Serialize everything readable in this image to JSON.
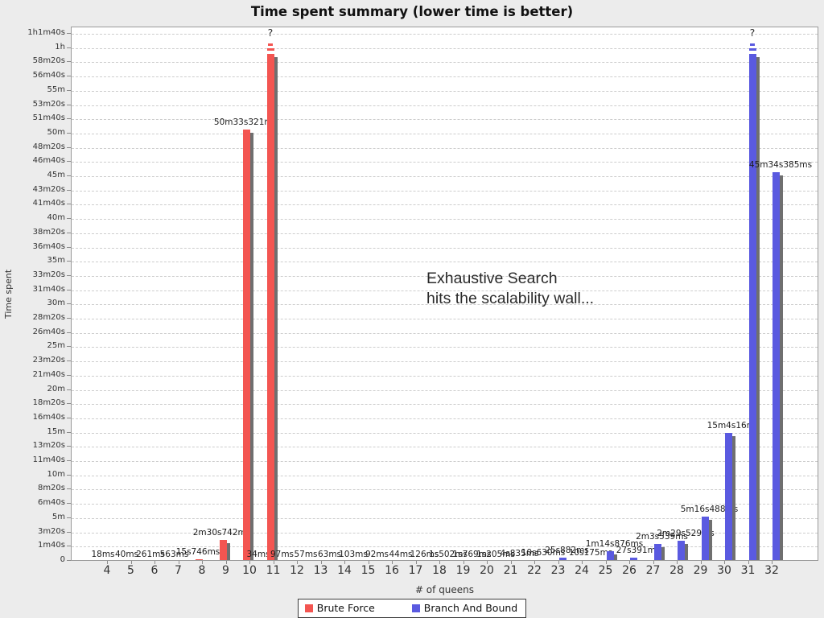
{
  "chart_data": {
    "type": "bar",
    "title": "Time spent summary (lower time is better)",
    "xlabel": "# of queens",
    "ylabel": "Time spent",
    "legend_position": "bottom",
    "grid": "horizontal-dashed",
    "plot_bg": "#ffffff",
    "page_bg": "#ececec",
    "shadow_color": "#6f6f6f",
    "failed_marker": "?",
    "categories": [
      4,
      5,
      6,
      7,
      8,
      9,
      10,
      11,
      12,
      13,
      14,
      15,
      16,
      17,
      18,
      19,
      20,
      21,
      22,
      23,
      24,
      25,
      26,
      27,
      28,
      29,
      30,
      31,
      32
    ],
    "y_axis": {
      "unit": "time",
      "tick_interval_seconds": 100,
      "max_seconds": 3700,
      "tick_labels_bottom_to_top": [
        "0",
        "1m40s",
        "3m20s",
        "5m",
        "6m40s",
        "8m20s",
        "10m",
        "11m40s",
        "13m20s",
        "15m",
        "16m40s",
        "18m20s",
        "20m",
        "21m40s",
        "23m20s",
        "25m",
        "26m40s",
        "28m20s",
        "30m",
        "31m40s",
        "33m20s",
        "35m",
        "36m40s",
        "38m20s",
        "40m",
        "41m40s",
        "43m20s",
        "45m",
        "46m40s",
        "48m20s",
        "50m",
        "51m40s",
        "53m20s",
        "55m",
        "56m40s",
        "58m20s",
        "1h",
        "1h1m40s"
      ]
    },
    "series": [
      {
        "name": "Brute Force",
        "color": "#f35551",
        "values": [
          {
            "queens": 4,
            "label": "18ms",
            "seconds": 0.018
          },
          {
            "queens": 5,
            "label": "40ms",
            "seconds": 0.04
          },
          {
            "queens": 6,
            "label": "261ms",
            "seconds": 0.261
          },
          {
            "queens": 7,
            "label": "563ms",
            "seconds": 0.563
          },
          {
            "queens": 8,
            "label": "15s746ms",
            "seconds": 15.746
          },
          {
            "queens": 9,
            "label": "2m30s742ms",
            "seconds": 150.742
          },
          {
            "queens": 10,
            "label": "50m33s321ms",
            "seconds": 3033.321
          },
          {
            "queens": 11,
            "label": "?",
            "failed": true
          }
        ]
      },
      {
        "name": "Branch And Bound",
        "color": "#5a5ae0",
        "values": [
          {
            "queens": 10,
            "label": "34ms",
            "seconds": 0.034
          },
          {
            "queens": 11,
            "label": "97ms",
            "seconds": 0.097
          },
          {
            "queens": 12,
            "label": "57ms",
            "seconds": 0.057
          },
          {
            "queens": 13,
            "label": "63ms",
            "seconds": 0.063
          },
          {
            "queens": 14,
            "label": "103ms",
            "seconds": 0.103
          },
          {
            "queens": 15,
            "label": "92ms",
            "seconds": 0.092
          },
          {
            "queens": 16,
            "label": "44ms",
            "seconds": 0.044
          },
          {
            "queens": 17,
            "label": "126ms",
            "seconds": 0.126
          },
          {
            "queens": 18,
            "label": "1s502ms",
            "seconds": 1.502
          },
          {
            "queens": 19,
            "label": "1s769ms",
            "seconds": 1.769
          },
          {
            "queens": 20,
            "label": "1s205ms",
            "seconds": 1.205
          },
          {
            "queens": 21,
            "label": "4s835ms",
            "seconds": 4.835
          },
          {
            "queens": 22,
            "label": "10s630ms",
            "seconds": 10.63
          },
          {
            "queens": 23,
            "label": "25s882ms",
            "seconds": 25.882
          },
          {
            "queens": 24,
            "label": "10s175ms",
            "seconds": 10.175
          },
          {
            "queens": 25,
            "label": "1m14s876ms",
            "seconds": 74.876
          },
          {
            "queens": 26,
            "label": "27s391ms",
            "seconds": 27.391
          },
          {
            "queens": 27,
            "label": "2m3s539ms",
            "seconds": 123.539
          },
          {
            "queens": 28,
            "label": "2m29s529ms",
            "seconds": 149.529
          },
          {
            "queens": 29,
            "label": "5m16s488ms",
            "seconds": 316.488
          },
          {
            "queens": 30,
            "label": "15m4s16ms",
            "seconds": 904.016
          },
          {
            "queens": 31,
            "label": "?",
            "failed": true
          },
          {
            "queens": 32,
            "label": "45m34s385ms",
            "seconds": 2734.385
          }
        ]
      }
    ],
    "annotation": {
      "lines": [
        "Exhaustive Search",
        "hits the scalability wall..."
      ]
    }
  }
}
